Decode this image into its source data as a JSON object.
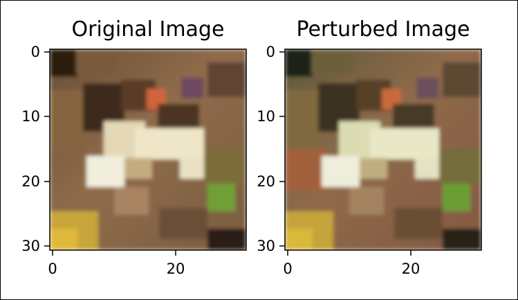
{
  "panels": [
    {
      "id": "original",
      "title": "Original Image",
      "image_icon": "frog-photo",
      "x_ticks": [
        0,
        20
      ],
      "y_ticks": [
        0,
        10,
        20,
        30
      ],
      "x_range": [
        0,
        31
      ],
      "y_range": [
        0,
        31
      ]
    },
    {
      "id": "perturbed",
      "title": "Perturbed Image",
      "image_icon": "frog-photo-perturbed",
      "x_ticks": [
        0,
        20
      ],
      "y_ticks": [
        0,
        10,
        20,
        30
      ],
      "x_range": [
        0,
        31
      ],
      "y_range": [
        0,
        31
      ]
    }
  ],
  "x_tick_labels": [
    "0",
    "20"
  ],
  "y_tick_labels": [
    "0",
    "10",
    "20",
    "30"
  ]
}
